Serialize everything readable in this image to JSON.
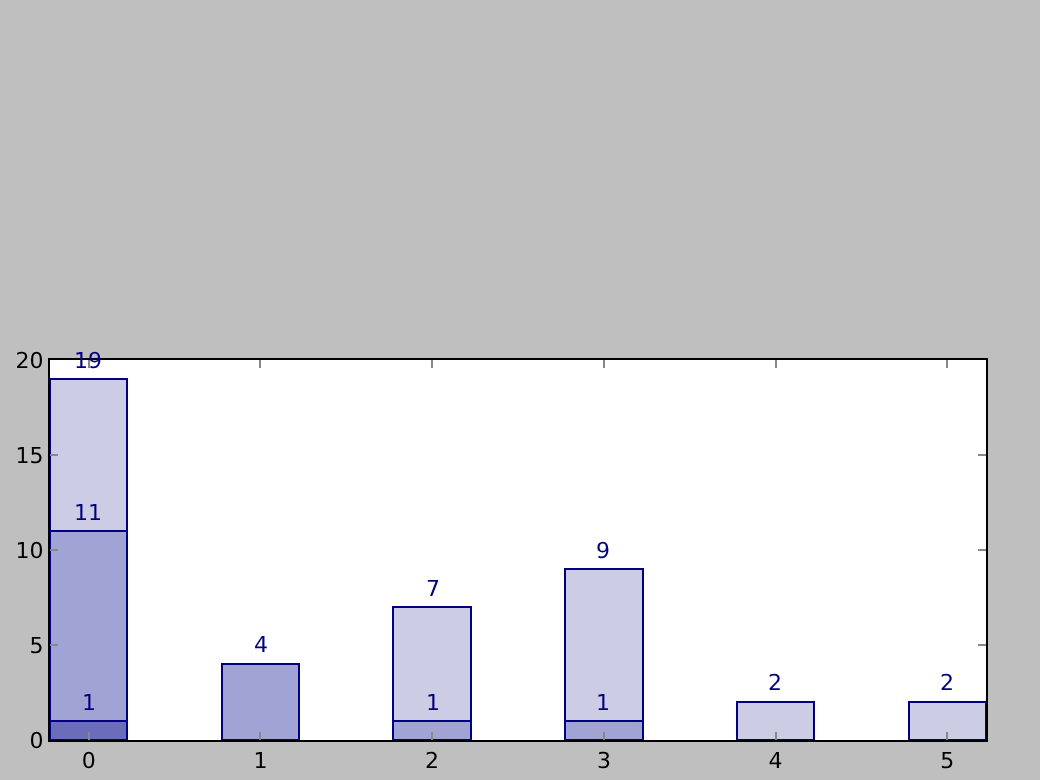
{
  "chart_data": {
    "type": "bar",
    "stacked": true,
    "x": [
      0,
      1,
      2,
      3,
      4,
      5
    ],
    "xlim": [
      -0.225,
      5.225
    ],
    "xticks": [
      0,
      1,
      2,
      3,
      4,
      5
    ],
    "ylim": [
      0,
      20
    ],
    "yticks": [
      0,
      5,
      10,
      15,
      20
    ],
    "series": [
      {
        "color": "#6b6db8",
        "values": [
          1,
          null,
          null,
          null,
          null,
          null
        ]
      },
      {
        "color": "#a0a3d3",
        "values": [
          10,
          4,
          1,
          1,
          null,
          null
        ]
      },
      {
        "color": "#cccce5",
        "values": [
          8,
          null,
          6,
          8,
          2,
          2
        ]
      }
    ],
    "annotations": [
      {
        "text": "1",
        "x": 0,
        "y": 1
      },
      {
        "text": "11",
        "x": 0,
        "y": 11
      },
      {
        "text": "19",
        "x": 0,
        "y": 19
      },
      {
        "text": "4",
        "x": 1,
        "y": 4
      },
      {
        "text": "1",
        "x": 2,
        "y": 1
      },
      {
        "text": "7",
        "x": 2,
        "y": 7
      },
      {
        "text": "1",
        "x": 3,
        "y": 1
      },
      {
        "text": "9",
        "x": 3,
        "y": 9
      },
      {
        "text": "2",
        "x": 4,
        "y": 2
      },
      {
        "text": "2",
        "x": 5,
        "y": 2
      }
    ]
  }
}
